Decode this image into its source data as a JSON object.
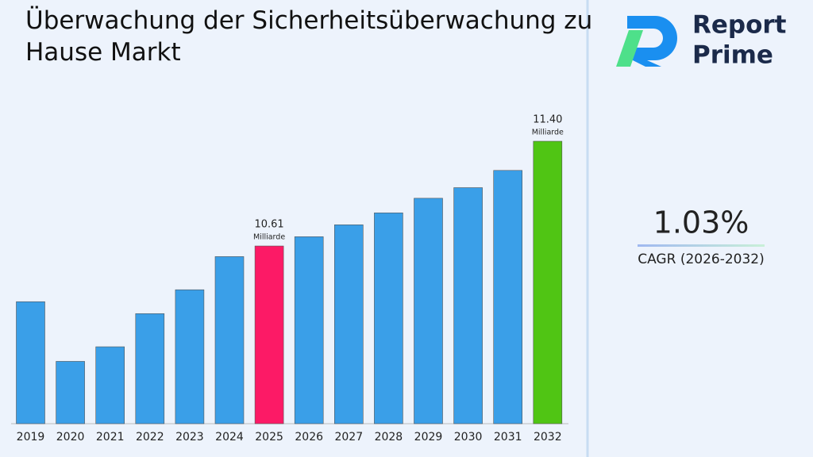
{
  "chart_data": {
    "type": "bar",
    "title": "Überwachung der Sicherheitsüberwachung zu Hause Markt",
    "categories": [
      "2019",
      "2020",
      "2021",
      "2022",
      "2023",
      "2024",
      "2025",
      "2026",
      "2027",
      "2028",
      "2029",
      "2030",
      "2031",
      "2032"
    ],
    "values": [
      10.19,
      9.74,
      9.85,
      10.1,
      10.28,
      10.53,
      10.61,
      10.68,
      10.77,
      10.86,
      10.97,
      11.05,
      11.18,
      11.4
    ],
    "value_labels": [
      null,
      null,
      null,
      null,
      null,
      null,
      "10.61",
      null,
      null,
      null,
      null,
      null,
      null,
      "11.40"
    ],
    "value_unit": "Milliarde",
    "colors": [
      "#3a9fe8",
      "#3a9fe8",
      "#3a9fe8",
      "#3a9fe8",
      "#3a9fe8",
      "#3a9fe8",
      "#fc1a66",
      "#3a9fe8",
      "#3a9fe8",
      "#3a9fe8",
      "#3a9fe8",
      "#3a9fe8",
      "#3a9fe8",
      "#50c514"
    ],
    "ylim": [
      9.27,
      11.5
    ]
  },
  "cagr": {
    "value": "1.03%",
    "label": "CAGR (2026-2032)"
  },
  "logo": {
    "line1": "Report",
    "line2": "Prime"
  }
}
